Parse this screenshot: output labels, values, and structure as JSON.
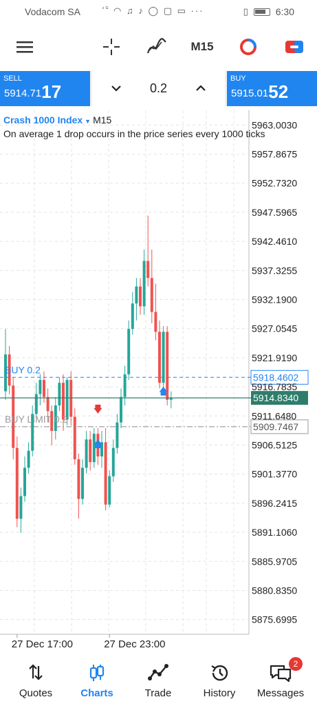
{
  "status_bar": {
    "carrier": "Vodacom SA",
    "time": "6:30"
  },
  "toolbar": {
    "menu_icon": "hamburger-menu-icon",
    "crosshair_icon": "crosshair-icon",
    "indicators_icon": "indicators-icon",
    "timeframe": "M15",
    "objects_icon": "objects-icon",
    "trade_icon": "trade-toggle-icon"
  },
  "trade_panel": {
    "sell": {
      "label": "SELL",
      "price_small": "5914.71",
      "price_big": "17"
    },
    "buy": {
      "label": "BUY",
      "price_small": "5915.01",
      "price_big": "52"
    },
    "volume": "0.2"
  },
  "colors": {
    "accent": "#2185f0",
    "bull": "#26a69a",
    "bear": "#ef5350",
    "current_price_line": "#2e7d6b"
  },
  "chart": {
    "symbol": "Crash 1000 Index",
    "timeframe": "M15",
    "description": "On average 1 drop occurs in the price series every 1000 ticks",
    "current_price": "5914.8340",
    "order_lines": [
      {
        "label": "BUY 0.2",
        "price": "5918.4602",
        "value": 5918.4602
      },
      {
        "label": "BUY LIMIT 0.2",
        "price": "5909.7467",
        "value": 5909.7467
      }
    ]
  },
  "chart_data": {
    "type": "candlestick",
    "y_ticks": [
      "5963.0030",
      "5957.8675",
      "5952.7320",
      "5947.5965",
      "5942.4610",
      "5937.3255",
      "5932.1900",
      "5927.0545",
      "5921.9190",
      "5916.7835",
      "5911.6480",
      "5906.5125",
      "5901.3770",
      "5896.2415",
      "5891.1060",
      "5885.9705",
      "5880.8350",
      "5875.6995"
    ],
    "ylim": [
      5873.1,
      5965.6
    ],
    "x_labels": [
      "27 Dec 17:00",
      "27 Dec 23:00"
    ],
    "x_label_index": [
      3,
      27
    ],
    "candles": [
      {
        "o": 5916.0,
        "h": 5927.0,
        "l": 5914.5,
        "c": 5922.5
      },
      {
        "o": 5922.5,
        "h": 5924.0,
        "l": 5915.5,
        "c": 5917.0
      },
      {
        "o": 5917.0,
        "h": 5918.5,
        "l": 5904.0,
        "c": 5906.0
      },
      {
        "o": 5906.0,
        "h": 5908.0,
        "l": 5892.0,
        "c": 5893.5
      },
      {
        "o": 5893.5,
        "h": 5899.0,
        "l": 5891.0,
        "c": 5897.5
      },
      {
        "o": 5897.5,
        "h": 5904.5,
        "l": 5896.5,
        "c": 5902.5
      },
      {
        "o": 5902.5,
        "h": 5907.0,
        "l": 5901.5,
        "c": 5905.5
      },
      {
        "o": 5905.5,
        "h": 5913.5,
        "l": 5904.5,
        "c": 5912.0
      },
      {
        "o": 5912.0,
        "h": 5917.5,
        "l": 5911.0,
        "c": 5915.5
      },
      {
        "o": 5915.5,
        "h": 5919.0,
        "l": 5913.5,
        "c": 5918.0
      },
      {
        "o": 5918.0,
        "h": 5919.5,
        "l": 5914.0,
        "c": 5915.0
      },
      {
        "o": 5915.0,
        "h": 5916.5,
        "l": 5910.5,
        "c": 5912.5
      },
      {
        "o": 5912.5,
        "h": 5913.5,
        "l": 5906.5,
        "c": 5909.0
      },
      {
        "o": 5909.0,
        "h": 5915.0,
        "l": 5907.5,
        "c": 5913.5
      },
      {
        "o": 5913.5,
        "h": 5918.5,
        "l": 5912.5,
        "c": 5917.5
      },
      {
        "o": 5917.5,
        "h": 5919.0,
        "l": 5909.0,
        "c": 5911.0
      },
      {
        "o": 5911.0,
        "h": 5918.5,
        "l": 5910.0,
        "c": 5918.0
      },
      {
        "o": 5918.0,
        "h": 5919.5,
        "l": 5910.0,
        "c": 5911.5
      },
      {
        "o": 5911.5,
        "h": 5913.0,
        "l": 5903.0,
        "c": 5904.0
      },
      {
        "o": 5904.0,
        "h": 5905.0,
        "l": 5893.5,
        "c": 5897.0
      },
      {
        "o": 5897.0,
        "h": 5904.0,
        "l": 5896.0,
        "c": 5902.5
      },
      {
        "o": 5902.5,
        "h": 5909.0,
        "l": 5901.5,
        "c": 5907.5
      },
      {
        "o": 5907.5,
        "h": 5909.0,
        "l": 5902.0,
        "c": 5903.5
      },
      {
        "o": 5903.5,
        "h": 5909.5,
        "l": 5902.5,
        "c": 5908.5
      },
      {
        "o": 5908.5,
        "h": 5909.5,
        "l": 5903.0,
        "c": 5904.5
      },
      {
        "o": 5904.5,
        "h": 5909.0,
        "l": 5902.5,
        "c": 5907.0
      },
      {
        "o": 5907.0,
        "h": 5909.5,
        "l": 5895.0,
        "c": 5896.0
      },
      {
        "o": 5896.0,
        "h": 5902.0,
        "l": 5895.5,
        "c": 5901.0
      },
      {
        "o": 5901.0,
        "h": 5907.5,
        "l": 5900.0,
        "c": 5906.0
      },
      {
        "o": 5906.0,
        "h": 5912.0,
        "l": 5905.0,
        "c": 5910.5
      },
      {
        "o": 5910.5,
        "h": 5916.5,
        "l": 5909.5,
        "c": 5915.0
      },
      {
        "o": 5915.0,
        "h": 5920.5,
        "l": 5913.5,
        "c": 5919.0
      },
      {
        "o": 5919.0,
        "h": 5928.5,
        "l": 5918.0,
        "c": 5927.0
      },
      {
        "o": 5927.0,
        "h": 5933.5,
        "l": 5926.0,
        "c": 5931.5
      },
      {
        "o": 5931.5,
        "h": 5936.0,
        "l": 5928.5,
        "c": 5934.5
      },
      {
        "o": 5934.5,
        "h": 5936.0,
        "l": 5929.5,
        "c": 5931.0
      },
      {
        "o": 5931.0,
        "h": 5941.0,
        "l": 5929.5,
        "c": 5939.0
      },
      {
        "o": 5939.0,
        "h": 5947.0,
        "l": 5934.5,
        "c": 5936.0
      },
      {
        "o": 5936.0,
        "h": 5941.0,
        "l": 5928.0,
        "c": 5930.0
      },
      {
        "o": 5930.0,
        "h": 5935.0,
        "l": 5925.0,
        "c": 5926.5
      },
      {
        "o": 5926.5,
        "h": 5928.5,
        "l": 5916.5,
        "c": 5917.5
      },
      {
        "o": 5917.5,
        "h": 5927.5,
        "l": 5916.0,
        "c": 5926.5
      },
      {
        "o": 5926.5,
        "h": 5927.5,
        "l": 5913.5,
        "c": 5914.5
      },
      {
        "o": 5914.5,
        "h": 5916.0,
        "l": 5913.0,
        "c": 5914.8
      }
    ],
    "markers": [
      {
        "type": "sell",
        "index": 24,
        "value": 5912.3
      },
      {
        "type": "buy",
        "index": 24,
        "value": 5906.8
      },
      {
        "type": "buy",
        "index": 41,
        "value": 5916.1
      }
    ]
  },
  "bottom_nav": [
    {
      "label": "Quotes",
      "icon": "quotes-icon",
      "active": false
    },
    {
      "label": "Charts",
      "icon": "charts-icon",
      "active": true
    },
    {
      "label": "Trade",
      "icon": "trade-icon",
      "active": false
    },
    {
      "label": "History",
      "icon": "history-icon",
      "active": false
    },
    {
      "label": "Messages",
      "icon": "messages-icon",
      "active": false,
      "badge": "2"
    }
  ]
}
